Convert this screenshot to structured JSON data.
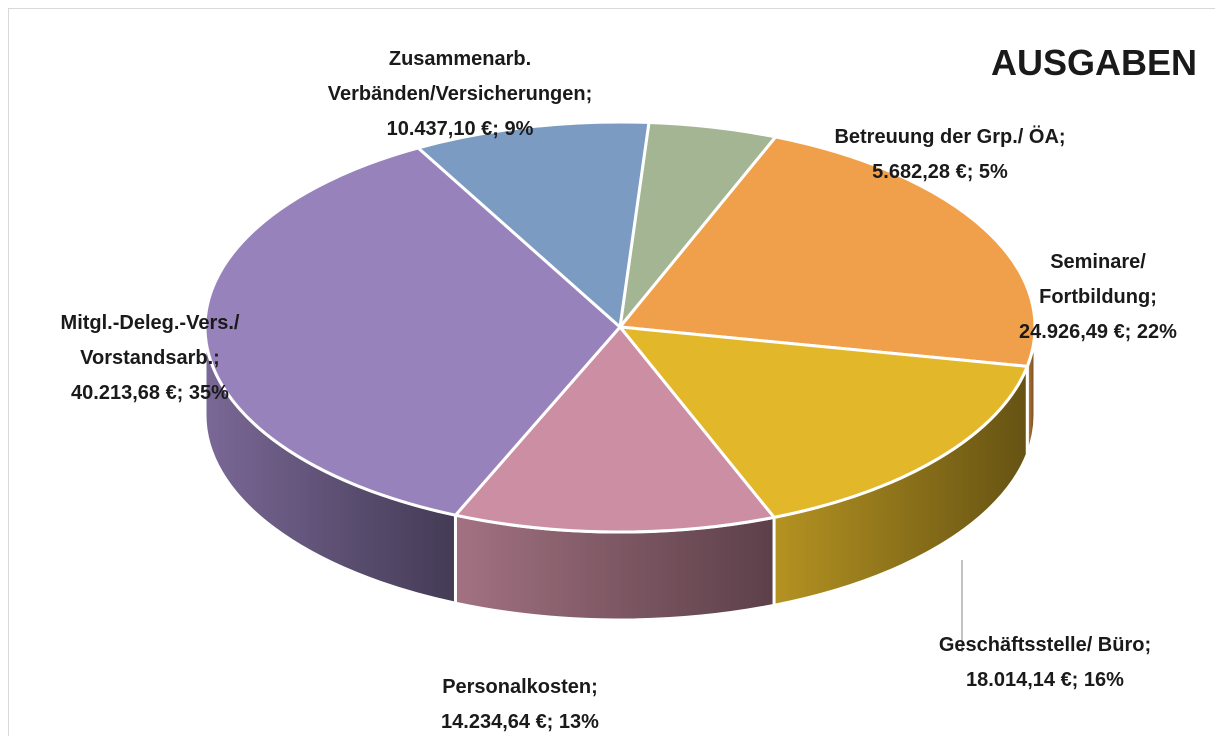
{
  "chart_data": {
    "type": "pie3d",
    "title": "AUSGABEN",
    "categories": [
      "Betreuung der Grp./ ÖA;",
      "Seminare/ Fortbildung;",
      "Geschäftsstelle/ Büro;",
      "Personalkosten;",
      "Mitgl.-Deleg.-Vers./ Vorstandsarb.;",
      "Zusammenarb. Verbänden/Versicherungen;"
    ],
    "values": [
      5682.28,
      24926.49,
      18014.14,
      14234.64,
      40213.68,
      10437.1
    ],
    "value_labels": [
      "5.682,28 €;",
      "24.926,49 €;",
      "18.014,14 €;",
      "14.234,64 €;",
      "40.213,68 €;",
      "10.437,10 €;"
    ],
    "percentages": [
      5,
      22,
      16,
      13,
      35,
      9
    ],
    "percentage_labels": [
      "5%",
      "22%",
      "16%",
      "13%",
      "35%",
      "9%"
    ],
    "colors": [
      "#a3b592",
      "#f0a04a",
      "#e2b82a",
      "#cc8ea2",
      "#9882bc",
      "#7b9bc3"
    ]
  }
}
